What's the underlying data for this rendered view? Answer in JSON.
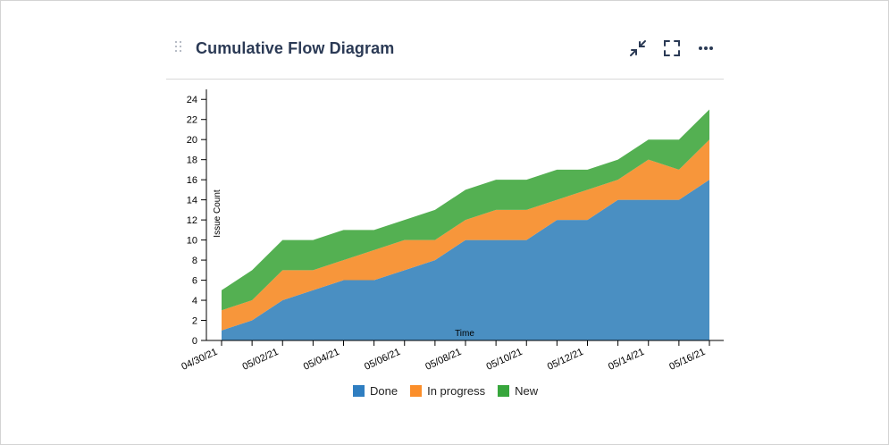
{
  "gadget": {
    "title": "Cumulative Flow Diagram",
    "actions": [
      {
        "name": "collapse-icon"
      },
      {
        "name": "fullscreen-icon"
      },
      {
        "name": "more-options-icon"
      }
    ]
  },
  "colors": {
    "done": "#4a8fc2",
    "in_progress": "#f7963b",
    "new": "#54b052",
    "legend_done": "#2f7ec1",
    "legend_in_progress": "#fb8e2a",
    "legend_new": "#37a63c",
    "axis": "#000000"
  },
  "chart_data": {
    "type": "area",
    "stacked": true,
    "xlabel": "Time",
    "ylabel": "Issue Count",
    "ylim": [
      0,
      25
    ],
    "yticks": [
      0,
      2,
      4,
      6,
      8,
      10,
      12,
      14,
      16,
      18,
      20,
      22,
      24
    ],
    "x": [
      "04/30/21",
      "05/01/21",
      "05/02/21",
      "05/03/21",
      "05/04/21",
      "05/05/21",
      "05/06/21",
      "05/07/21",
      "05/08/21",
      "05/09/21",
      "05/10/21",
      "05/11/21",
      "05/12/21",
      "05/13/21",
      "05/14/21",
      "05/15/21",
      "05/16/21"
    ],
    "xtick_labels": [
      "04/30/21",
      "05/02/21",
      "05/04/21",
      "05/06/21",
      "05/08/21",
      "05/10/21",
      "05/12/21",
      "05/14/21",
      "05/16/21"
    ],
    "series": [
      {
        "name": "Done",
        "values": [
          1,
          2,
          4,
          5,
          6,
          6,
          7,
          8,
          10,
          10,
          10,
          12,
          12,
          14,
          14,
          14,
          16
        ]
      },
      {
        "name": "In progress",
        "values": [
          2,
          2,
          3,
          2,
          2,
          3,
          3,
          2,
          2,
          3,
          3,
          2,
          3,
          2,
          4,
          3,
          4
        ]
      },
      {
        "name": "New",
        "values": [
          2,
          3,
          3,
          3,
          3,
          2,
          2,
          3,
          3,
          3,
          3,
          3,
          2,
          2,
          2,
          3,
          3
        ]
      }
    ],
    "legend_position": "bottom"
  }
}
